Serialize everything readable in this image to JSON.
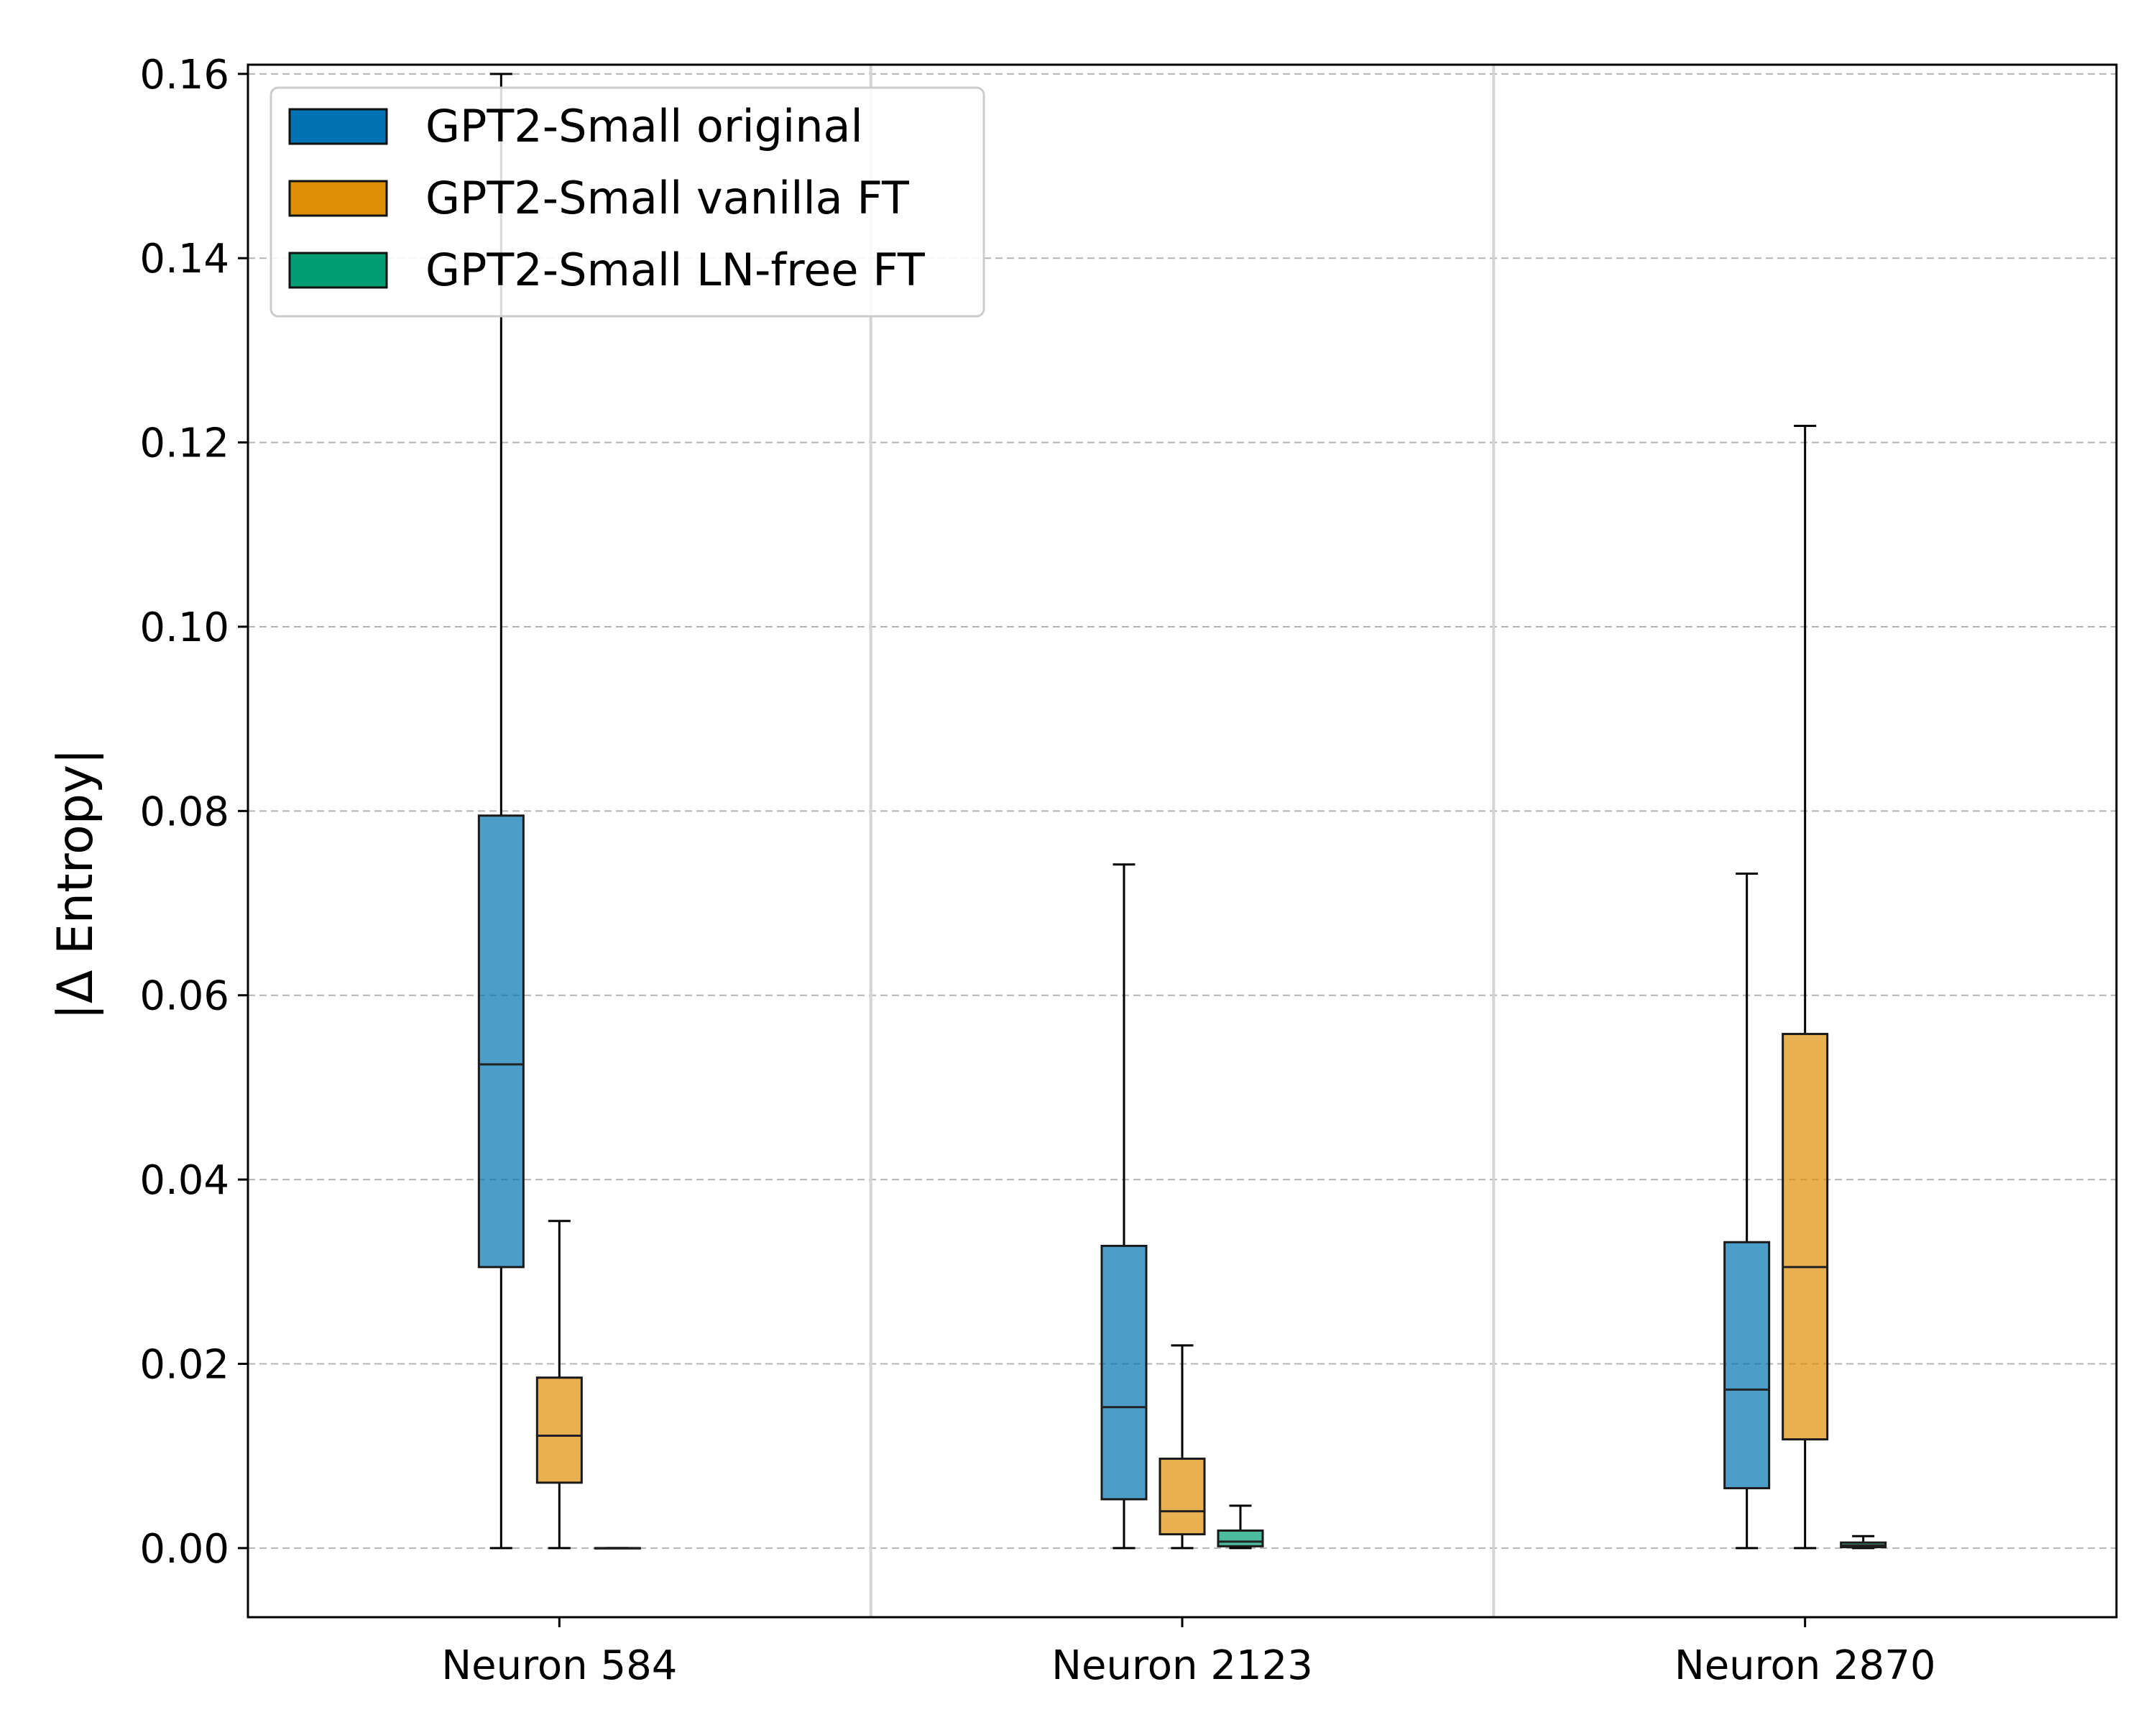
{
  "chart_data": {
    "type": "box",
    "ylabel": "|Δ Entropy|",
    "ylim": [
      -0.0075,
      0.161
    ],
    "yticks": [
      0.0,
      0.02,
      0.04,
      0.06,
      0.08,
      0.1,
      0.12,
      0.14,
      0.16
    ],
    "ytick_labels": [
      "0.00",
      "0.02",
      "0.04",
      "0.06",
      "0.08",
      "0.10",
      "0.12",
      "0.14",
      "0.16"
    ],
    "grid": "horizontal dashed",
    "legend_position": "top-left",
    "categories": [
      "Neuron 584",
      "Neuron 2123",
      "Neuron 2870"
    ],
    "series": [
      {
        "name": "GPT2-Small original",
        "color": "#0173b2",
        "boxes": [
          {
            "whislo": 0.0,
            "q1": 0.0305,
            "median": 0.0525,
            "q3": 0.0795,
            "whishi": 0.16
          },
          {
            "whislo": 0.0,
            "q1": 0.0053,
            "median": 0.0153,
            "q3": 0.0328,
            "whishi": 0.0742
          },
          {
            "whislo": 0.0,
            "q1": 0.0065,
            "median": 0.0172,
            "q3": 0.0332,
            "whishi": 0.0732
          }
        ]
      },
      {
        "name": "GPT2-Small vanilla FT",
        "color": "#de8f05",
        "boxes": [
          {
            "whislo": 0.0,
            "q1": 0.0071,
            "median": 0.0122,
            "q3": 0.0185,
            "whishi": 0.0355
          },
          {
            "whislo": 0.0,
            "q1": 0.0015,
            "median": 0.004,
            "q3": 0.0097,
            "whishi": 0.022
          },
          {
            "whislo": 0.0,
            "q1": 0.0118,
            "median": 0.0305,
            "q3": 0.0558,
            "whishi": 0.1218
          }
        ]
      },
      {
        "name": "GPT2-Small LN-free FT",
        "color": "#029e73",
        "boxes": [
          {
            "whislo": 0.0,
            "q1": 0.0,
            "median": 0.0,
            "q3": 0.0,
            "whishi": 0.0
          },
          {
            "whislo": 0.0,
            "q1": 0.0002,
            "median": 0.0007,
            "q3": 0.0019,
            "whishi": 0.0046
          },
          {
            "whislo": 0.0,
            "q1": 0.0001,
            "median": 0.0003,
            "q3": 0.0006,
            "whishi": 0.0013
          }
        ]
      }
    ]
  }
}
